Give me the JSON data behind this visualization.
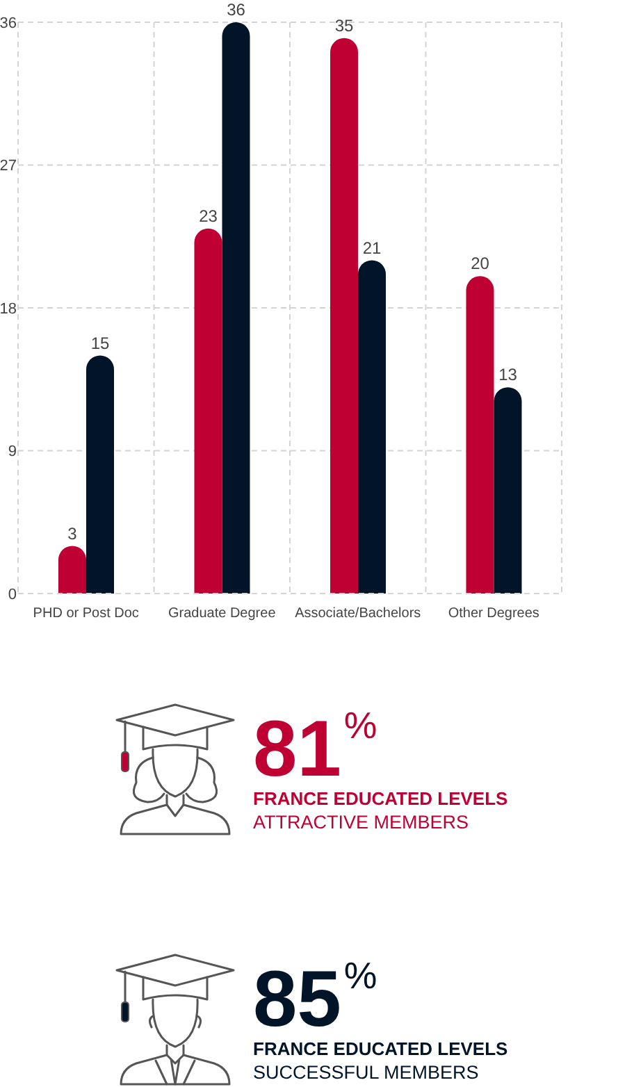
{
  "chart_data": [
    {
      "type": "bar",
      "categories": [
        "PHD or Post Doc",
        "Graduate Degree",
        "Associate/Bachelors",
        "Other Degrees"
      ],
      "series": [
        {
          "color": "#be0032",
          "values": [
            3,
            23,
            35,
            20
          ]
        },
        {
          "color": "#011428",
          "values": [
            15,
            36,
            21,
            13
          ]
        }
      ],
      "ylim": [
        0,
        36
      ],
      "yticks": [
        0,
        9,
        18,
        27,
        36
      ],
      "grid": true,
      "data_labels": true
    },
    {
      "type": "other",
      "color": "#be0032",
      "annotations": [
        "81$^{%}$",
        "FRANCE EDUCATED LEVELS",
        "ATTRACTIVE MEMBERS"
      ]
    },
    {
      "type": "other",
      "color": "#011428",
      "annotations": [
        "85$^{%}$",
        "FRANCE EDUCATED LEVELS",
        "SUCCESSFUL MEMBERS"
      ]
    }
  ]
}
